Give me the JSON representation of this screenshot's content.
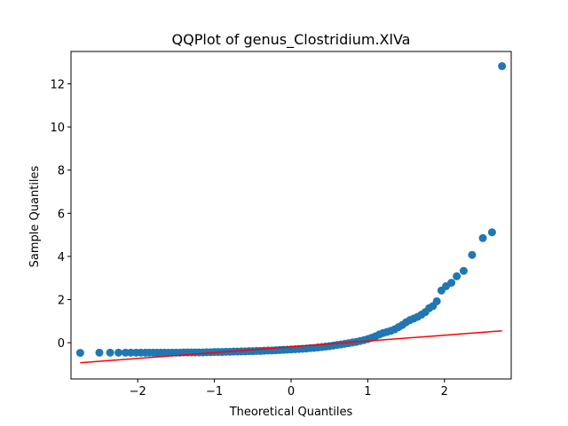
{
  "chart_data": {
    "type": "scatter",
    "title": "QQPlot of genus_Clostridium.XlVa",
    "xlabel": "Theoretical Quantiles",
    "ylabel": "Sample Quantiles",
    "xlim": [
      -2.87,
      2.87
    ],
    "ylim": [
      -1.68,
      13.5
    ],
    "xticks": [
      -2,
      -1,
      0,
      1,
      2
    ],
    "xtick_labels": [
      "−2",
      "−1",
      "0",
      "1",
      "2"
    ],
    "yticks": [
      0,
      2,
      4,
      6,
      8,
      10,
      12
    ],
    "ytick_labels": [
      "0",
      "2",
      "4",
      "6",
      "8",
      "10",
      "12"
    ],
    "grid": false,
    "points_color": "#1f77b4",
    "line_color": "#ff0000",
    "reference_line": {
      "x": [
        -2.75,
        2.75
      ],
      "y": [
        -0.93,
        0.55
      ]
    },
    "series": [
      {
        "values": [
          [
            -2.75,
            -0.47
          ],
          [
            -2.5,
            -0.46
          ],
          [
            -2.36,
            -0.46
          ],
          [
            -2.25,
            -0.46
          ],
          [
            -2.16,
            -0.46
          ],
          [
            -2.09,
            -0.46
          ],
          [
            -2.02,
            -0.46
          ],
          [
            -1.96,
            -0.46
          ],
          [
            -1.9,
            -0.46
          ],
          [
            -1.85,
            -0.46
          ],
          [
            -1.8,
            -0.46
          ],
          [
            -1.75,
            -0.46
          ],
          [
            -1.7,
            -0.46
          ],
          [
            -1.65,
            -0.46
          ],
          [
            -1.6,
            -0.46
          ],
          [
            -1.55,
            -0.46
          ],
          [
            -1.5,
            -0.46
          ],
          [
            -1.45,
            -0.46
          ],
          [
            -1.4,
            -0.45
          ],
          [
            -1.35,
            -0.45
          ],
          [
            -1.3,
            -0.45
          ],
          [
            -1.25,
            -0.45
          ],
          [
            -1.2,
            -0.45
          ],
          [
            -1.15,
            -0.45
          ],
          [
            -1.1,
            -0.44
          ],
          [
            -1.05,
            -0.44
          ],
          [
            -1.0,
            -0.43
          ],
          [
            -0.95,
            -0.43
          ],
          [
            -0.9,
            -0.43
          ],
          [
            -0.85,
            -0.42
          ],
          [
            -0.8,
            -0.42
          ],
          [
            -0.75,
            -0.41
          ],
          [
            -0.7,
            -0.41
          ],
          [
            -0.65,
            -0.4
          ],
          [
            -0.6,
            -0.4
          ],
          [
            -0.55,
            -0.39
          ],
          [
            -0.5,
            -0.39
          ],
          [
            -0.45,
            -0.38
          ],
          [
            -0.4,
            -0.38
          ],
          [
            -0.35,
            -0.37
          ],
          [
            -0.3,
            -0.36
          ],
          [
            -0.25,
            -0.36
          ],
          [
            -0.2,
            -0.35
          ],
          [
            -0.15,
            -0.34
          ],
          [
            -0.1,
            -0.33
          ],
          [
            -0.05,
            -0.32
          ],
          [
            0.0,
            -0.31
          ],
          [
            0.05,
            -0.3
          ],
          [
            0.1,
            -0.29
          ],
          [
            0.15,
            -0.28
          ],
          [
            0.2,
            -0.27
          ],
          [
            0.25,
            -0.25
          ],
          [
            0.3,
            -0.24
          ],
          [
            0.35,
            -0.22
          ],
          [
            0.4,
            -0.2
          ],
          [
            0.45,
            -0.18
          ],
          [
            0.5,
            -0.16
          ],
          [
            0.55,
            -0.13
          ],
          [
            0.6,
            -0.1
          ],
          [
            0.65,
            -0.08
          ],
          [
            0.7,
            -0.05
          ],
          [
            0.75,
            -0.02
          ],
          [
            0.8,
            0.01
          ],
          [
            0.85,
            0.04
          ],
          [
            0.9,
            0.08
          ],
          [
            0.95,
            0.12
          ],
          [
            1.0,
            0.17
          ],
          [
            1.05,
            0.23
          ],
          [
            1.1,
            0.3
          ],
          [
            1.15,
            0.38
          ],
          [
            1.2,
            0.45
          ],
          [
            1.25,
            0.5
          ],
          [
            1.3,
            0.55
          ],
          [
            1.35,
            0.62
          ],
          [
            1.4,
            0.72
          ],
          [
            1.45,
            0.82
          ],
          [
            1.5,
            0.95
          ],
          [
            1.55,
            1.05
          ],
          [
            1.6,
            1.12
          ],
          [
            1.65,
            1.2
          ],
          [
            1.7,
            1.3
          ],
          [
            1.75,
            1.42
          ],
          [
            1.8,
            1.6
          ],
          [
            1.85,
            1.7
          ],
          [
            1.9,
            1.92
          ],
          [
            1.96,
            2.42
          ],
          [
            2.02,
            2.62
          ],
          [
            2.09,
            2.78
          ],
          [
            2.16,
            3.08
          ],
          [
            2.25,
            3.33
          ],
          [
            2.36,
            4.07
          ],
          [
            2.5,
            4.85
          ],
          [
            2.62,
            5.12
          ],
          [
            2.75,
            12.82
          ]
        ]
      }
    ]
  }
}
